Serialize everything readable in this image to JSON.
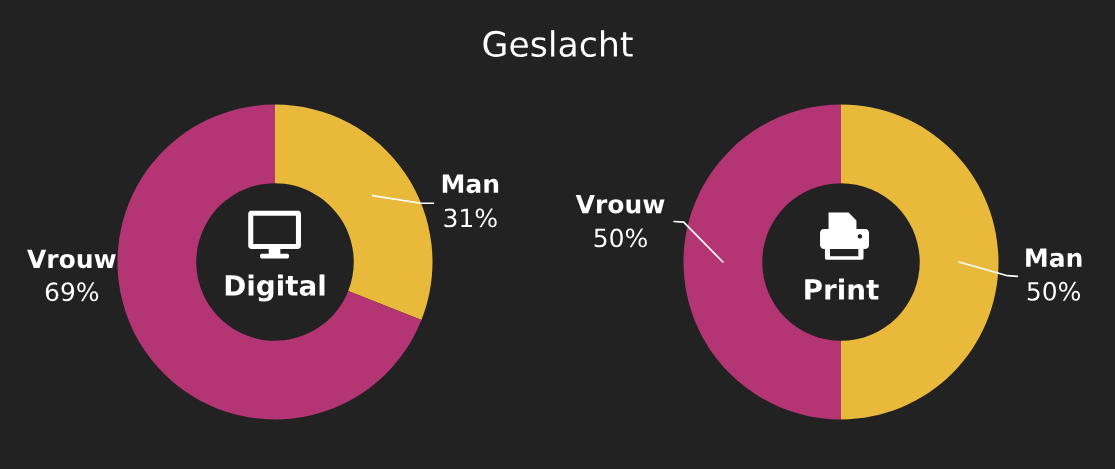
{
  "chart_data": [
    {
      "type": "donut",
      "title": "Geslacht",
      "annotations": [
        "Digital"
      ],
      "categories": [
        "Man",
        "Vrouw"
      ],
      "values": [
        31,
        69
      ],
      "colors": [
        "#e9b93b",
        "#b43574"
      ],
      "value_labels": [
        "31%",
        "69%"
      ]
    },
    {
      "type": "donut",
      "annotations": [
        "Print"
      ],
      "categories": [
        "Man",
        "Vrouw"
      ],
      "values": [
        50,
        50
      ],
      "colors": [
        "#e9b93b",
        "#b43574"
      ],
      "value_labels": [
        "50%",
        "50%"
      ]
    }
  ]
}
